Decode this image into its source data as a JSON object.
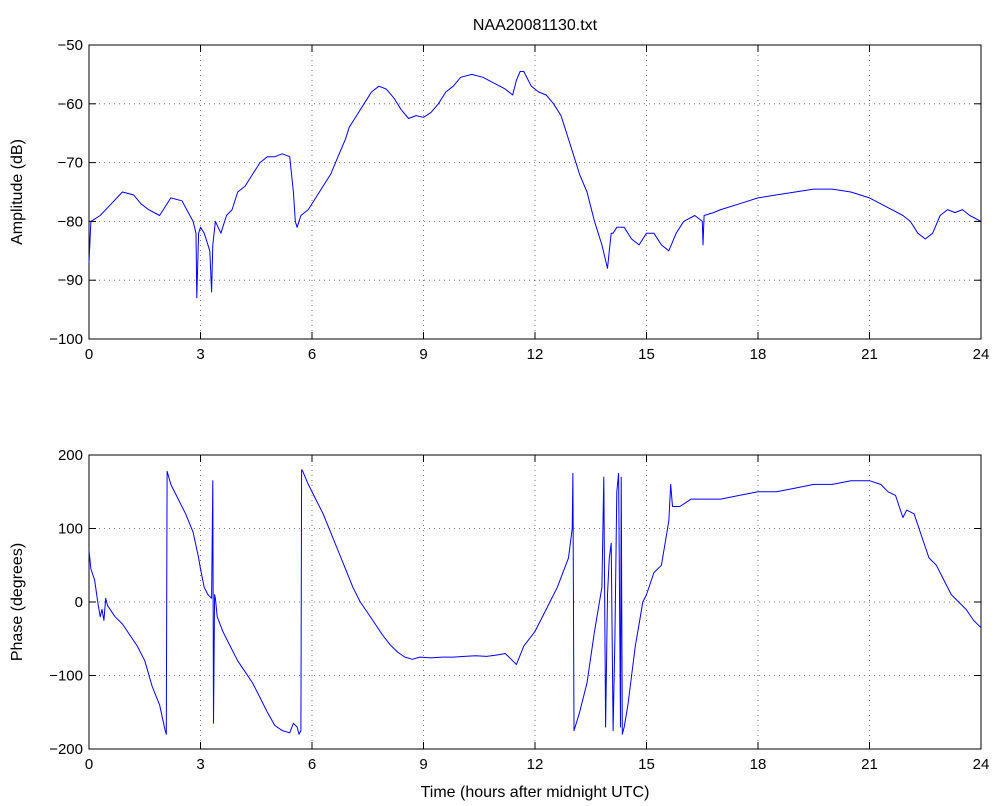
{
  "chart_data": [
    {
      "type": "line",
      "title": "NAA20081130.txt",
      "xlabel": "",
      "ylabel": "Amplitude (dB)",
      "xlim": [
        0,
        24
      ],
      "ylim": [
        -100,
        -50
      ],
      "xticks": [
        0,
        3,
        6,
        9,
        12,
        15,
        18,
        21,
        24
      ],
      "yticks": [
        -100,
        -90,
        -80,
        -70,
        -60,
        -50
      ],
      "xtick_labels": [
        "0",
        "3",
        "6",
        "9",
        "12",
        "15",
        "18",
        "21",
        "24"
      ],
      "ytick_labels": [
        "−100",
        "−90",
        "−80",
        "−70",
        "−60",
        "−50"
      ],
      "grid": true,
      "color": "#0000ff",
      "series": [
        {
          "x": [
            0,
            0.05,
            0.3,
            0.6,
            0.9,
            1.2,
            1.4,
            1.6,
            1.9,
            2.2,
            2.5,
            2.8,
            2.88,
            2.9,
            2.95,
            3.0,
            3.1,
            3.25,
            3.3,
            3.33,
            3.4,
            3.55,
            3.7,
            3.85,
            4.0,
            4.2,
            4.4,
            4.6,
            4.8,
            5.0,
            5.2,
            5.4,
            5.5,
            5.55,
            5.6,
            5.7,
            5.9,
            6.1,
            6.3,
            6.5,
            6.7,
            6.9,
            7.0,
            7.2,
            7.4,
            7.6,
            7.8,
            8.0,
            8.2,
            8.4,
            8.6,
            8.8,
            9.0,
            9.2,
            9.4,
            9.6,
            9.8,
            10.0,
            10.3,
            10.6,
            10.9,
            11.2,
            11.4,
            11.5,
            11.6,
            11.7,
            11.9,
            12.1,
            12.3,
            12.5,
            12.7,
            12.9,
            13.0,
            13.2,
            13.4,
            13.6,
            13.8,
            13.95,
            14.0,
            14.05,
            14.1,
            14.2,
            14.4,
            14.6,
            14.8,
            15.0,
            15.2,
            15.4,
            15.6,
            15.8,
            16.0,
            16.3,
            16.5,
            16.52,
            16.55,
            16.8,
            17.0,
            17.5,
            18.0,
            18.5,
            19.0,
            19.5,
            20.0,
            20.5,
            21.0,
            21.3,
            21.6,
            21.9,
            22.1,
            22.3,
            22.5,
            22.7,
            22.9,
            23.1,
            23.3,
            23.5,
            23.7,
            24.0
          ],
          "y": [
            -87,
            -80,
            -79,
            -77,
            -75,
            -75.5,
            -77,
            -78,
            -79,
            -76,
            -76.5,
            -80,
            -82,
            -93,
            -82,
            -81,
            -82,
            -85,
            -92,
            -84,
            -80,
            -82,
            -79,
            -78,
            -75,
            -74,
            -72,
            -70,
            -69,
            -69,
            -68.5,
            -69,
            -75,
            -80,
            -81,
            -79,
            -78,
            -76,
            -74,
            -72,
            -69,
            -66,
            -64,
            -62,
            -60,
            -58,
            -57,
            -57.5,
            -59,
            -61,
            -62.5,
            -62,
            -62.3,
            -61.5,
            -60,
            -58,
            -57,
            -55.5,
            -55,
            -55.5,
            -56.5,
            -57.5,
            -58.5,
            -56,
            -54.5,
            -54.5,
            -57,
            -58,
            -58.5,
            -60,
            -62,
            -66,
            -68,
            -72,
            -75,
            -80,
            -84,
            -88,
            -85,
            -82,
            -82,
            -81,
            -81,
            -83,
            -84,
            -82,
            -82,
            -84,
            -85,
            -82,
            -80,
            -79,
            -80,
            -84,
            -79,
            -78.5,
            -78,
            -77,
            -76,
            -75.5,
            -75,
            -74.5,
            -74.5,
            -75,
            -76,
            -77,
            -78,
            -79,
            -80,
            -82,
            -83,
            -82,
            -79,
            -78,
            -78.5,
            -78,
            -79,
            -80
          ]
        }
      ]
    },
    {
      "type": "line",
      "title": "",
      "xlabel": "Time (hours after midnight UTC)",
      "ylabel": "Phase (degrees)",
      "xlim": [
        0,
        24
      ],
      "ylim": [
        -200,
        200
      ],
      "xticks": [
        0,
        3,
        6,
        9,
        12,
        15,
        18,
        21,
        24
      ],
      "yticks": [
        -200,
        -100,
        0,
        100,
        200
      ],
      "xtick_labels": [
        "0",
        "3",
        "6",
        "9",
        "12",
        "15",
        "18",
        "21",
        "24"
      ],
      "ytick_labels": [
        "−200",
        "−100",
        "0",
        "100",
        "200"
      ],
      "grid": true,
      "color": "#0000ff",
      "series": [
        {
          "x": [
            0,
            0.05,
            0.15,
            0.25,
            0.3,
            0.35,
            0.4,
            0.45,
            0.5,
            0.7,
            0.9,
            1.1,
            1.3,
            1.5,
            1.7,
            1.9,
            2.05,
            2.08,
            2.1,
            2.2,
            2.4,
            2.6,
            2.8,
            2.95,
            3.0,
            3.1,
            3.2,
            3.3,
            3.33,
            3.35,
            3.38,
            3.4,
            3.45,
            3.6,
            3.8,
            4.0,
            4.2,
            4.4,
            4.6,
            4.8,
            5.0,
            5.2,
            5.4,
            5.5,
            5.6,
            5.65,
            5.7,
            5.72,
            5.75,
            5.9,
            6.1,
            6.3,
            6.5,
            6.7,
            6.9,
            7.1,
            7.3,
            7.5,
            7.7,
            7.9,
            8.1,
            8.3,
            8.5,
            8.7,
            8.9,
            9.2,
            9.5,
            9.8,
            10.1,
            10.4,
            10.7,
            11.0,
            11.2,
            11.4,
            11.5,
            11.7,
            12.0,
            12.3,
            12.6,
            12.9,
            13.0,
            13.02,
            13.05,
            13.2,
            13.4,
            13.6,
            13.8,
            13.85,
            13.9,
            13.95,
            14.0,
            14.05,
            14.1,
            14.15,
            14.2,
            14.25,
            14.3,
            14.32,
            14.35,
            14.4,
            14.5,
            14.6,
            14.7,
            14.8,
            14.9,
            15.0,
            15.2,
            15.4,
            15.5,
            15.6,
            15.65,
            15.7,
            15.9,
            16.2,
            16.5,
            17.0,
            17.5,
            18.0,
            18.5,
            19.0,
            19.5,
            20.0,
            20.5,
            21.0,
            21.3,
            21.5,
            21.7,
            21.9,
            22.0,
            22.2,
            22.4,
            22.6,
            22.8,
            23.0,
            23.2,
            23.4,
            23.6,
            23.8,
            24.0
          ],
          "y": [
            70,
            45,
            30,
            -5,
            -20,
            -10,
            -25,
            5,
            -5,
            -20,
            -30,
            -45,
            -60,
            -80,
            -115,
            -140,
            -175,
            -180,
            178,
            160,
            140,
            120,
            95,
            60,
            45,
            20,
            10,
            5,
            165,
            -165,
            10,
            5,
            -20,
            -40,
            -60,
            -80,
            -95,
            -110,
            -130,
            -150,
            -168,
            -175,
            -178,
            -165,
            -170,
            -180,
            -175,
            180,
            178,
            160,
            140,
            120,
            95,
            70,
            45,
            20,
            0,
            -15,
            -30,
            -45,
            -58,
            -68,
            -75,
            -78,
            -75,
            -76,
            -75,
            -75,
            -74,
            -73,
            -74,
            -72,
            -70,
            -80,
            -85,
            -60,
            -40,
            -10,
            20,
            60,
            100,
            175,
            -175,
            -150,
            -110,
            -40,
            20,
            170,
            -170,
            10,
            60,
            80,
            -175,
            -50,
            150,
            175,
            -170,
            170,
            -180,
            -170,
            -140,
            -100,
            -60,
            -30,
            0,
            10,
            40,
            50,
            80,
            110,
            160,
            130,
            130,
            140,
            140,
            140,
            145,
            150,
            150,
            155,
            160,
            160,
            165,
            165,
            160,
            150,
            145,
            115,
            125,
            120,
            90,
            60,
            50,
            30,
            10,
            0,
            -10,
            -25,
            -35
          ]
        }
      ]
    }
  ]
}
